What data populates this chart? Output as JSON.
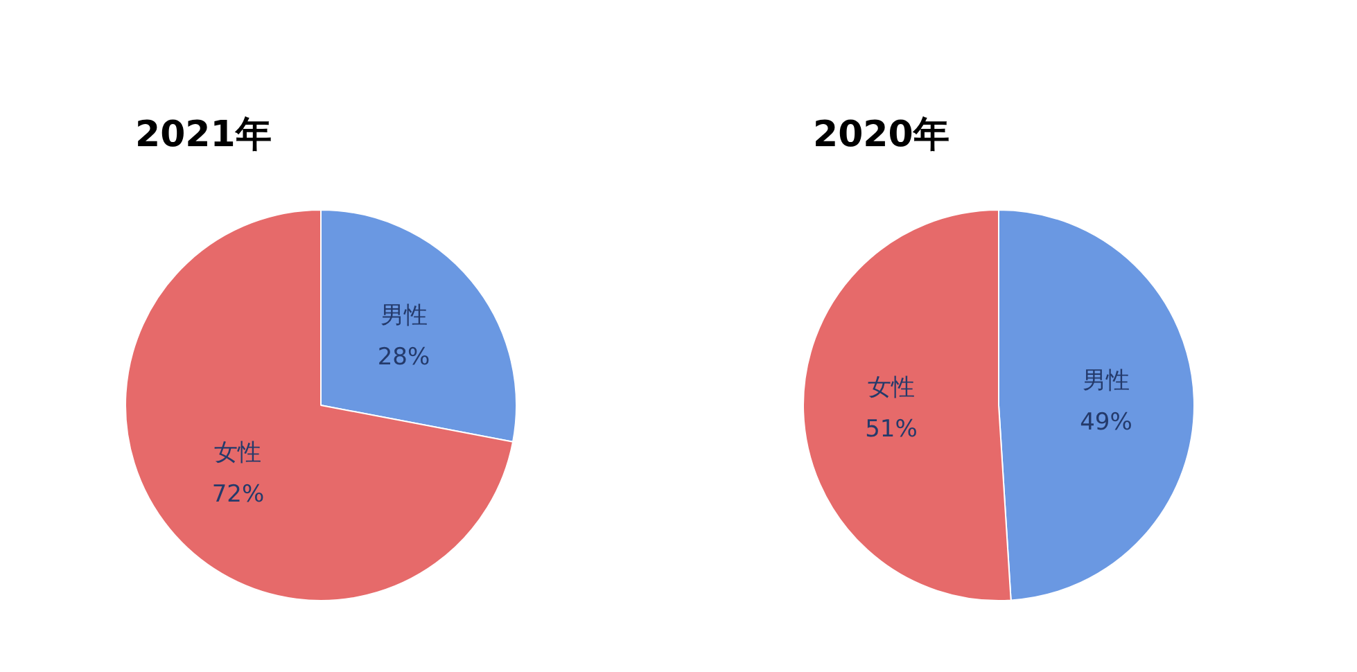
{
  "chart_data": [
    {
      "type": "pie",
      "title": "2021年",
      "categories": [
        "男性",
        "女性"
      ],
      "values": [
        28,
        72
      ],
      "value_labels": [
        "28%",
        "72%"
      ],
      "colors": [
        "#6a98e2",
        "#e66a6a"
      ]
    },
    {
      "type": "pie",
      "title": "2020年",
      "categories": [
        "男性",
        "女性"
      ],
      "values": [
        49,
        51
      ],
      "value_labels": [
        "49%",
        "51%"
      ],
      "colors": [
        "#6a98e2",
        "#e66a6a"
      ]
    }
  ]
}
